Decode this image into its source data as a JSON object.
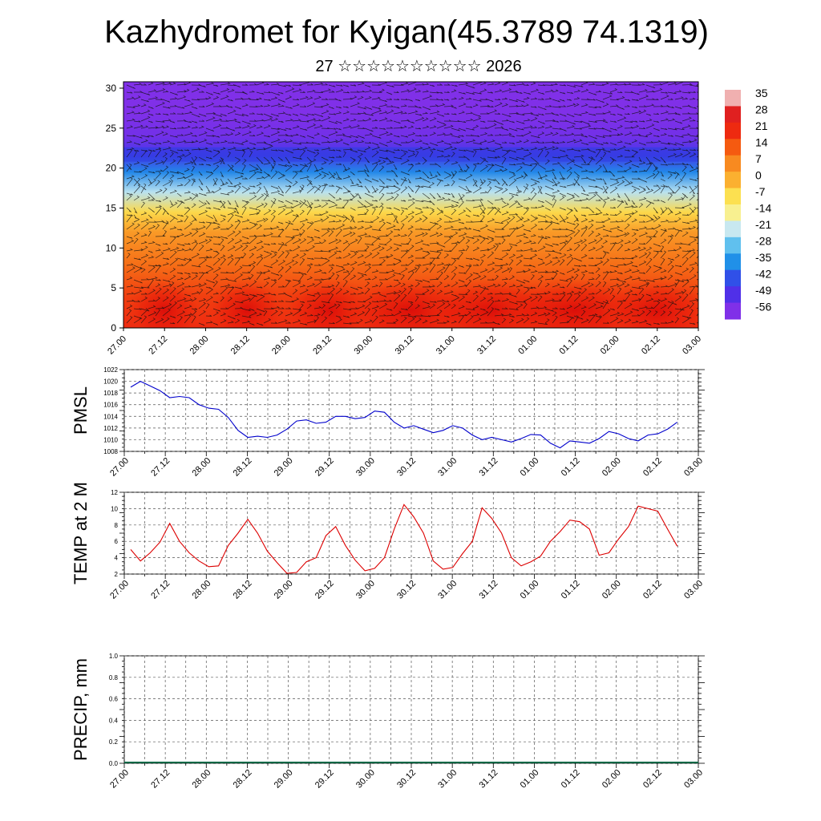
{
  "header": {
    "title": "Kazhydromet for Kyigan(45.3789 74.1319)",
    "subtitle": "27 ☆☆☆☆☆☆☆☆☆☆ 2026"
  },
  "chart_data": [
    {
      "type": "heatmap",
      "title": "",
      "xlabel": "",
      "ylabel": "",
      "x_tick_labels": [
        "27.00",
        "27.12",
        "28.00",
        "28.12",
        "29.00",
        "29.12",
        "30.00",
        "30.12",
        "31.00",
        "31.12",
        "01.00",
        "01.12",
        "02.00",
        "02.12",
        "03.00"
      ],
      "y_ticks": [
        0,
        5,
        10,
        15,
        20,
        25,
        30
      ],
      "ylim": [
        0,
        30.8
      ],
      "overlay": "wind vectors",
      "colorbar": {
        "labels": [
          "35",
          "28",
          "21",
          "14",
          "7",
          "0",
          "-7",
          "-14",
          "-21",
          "-28",
          "-35",
          "-42",
          "-49",
          "-56"
        ],
        "colors": [
          "#f0b0b0",
          "#e02020",
          "#ee2a10",
          "#f55a10",
          "#f88a20",
          "#fbb030",
          "#fce050",
          "#f8f090",
          "#c8e8f0",
          "#60c0ee",
          "#2090e8",
          "#3050e8",
          "#5030e8",
          "#8030e8"
        ]
      },
      "temperature_profile": [
        {
          "height": 0,
          "value": 21
        },
        {
          "height": 4,
          "value": 18
        },
        {
          "height": 8,
          "value": 11
        },
        {
          "height": 12,
          "value": 4
        },
        {
          "height": 14.5,
          "value": -6
        },
        {
          "height": 17,
          "value": -22
        },
        {
          "height": 19.5,
          "value": -36
        },
        {
          "height": 21.6,
          "value": -47
        },
        {
          "height": 24,
          "value": -54
        },
        {
          "height": 27,
          "value": -56
        },
        {
          "height": 30.8,
          "value": -57
        }
      ]
    },
    {
      "type": "line",
      "ylabel": "PMSL",
      "ylim": [
        1008,
        1022
      ],
      "y_ticks": [
        1008,
        1010,
        1012,
        1014,
        1016,
        1018,
        1020,
        1022
      ],
      "x_tick_labels": [
        "27.00",
        "27.12",
        "28.00",
        "28.12",
        "29.00",
        "29.12",
        "30.00",
        "30.12",
        "31.00",
        "31.12",
        "01.00",
        "01.12",
        "02.00",
        "02.12",
        "03.00"
      ],
      "color": "#0000cc",
      "values": [
        1019.0,
        1020.0,
        1019.2,
        1018.4,
        1017.2,
        1017.4,
        1017.2,
        1016.0,
        1015.4,
        1015.2,
        1013.8,
        1011.6,
        1010.4,
        1010.6,
        1010.4,
        1010.8,
        1011.8,
        1013.2,
        1013.4,
        1012.8,
        1013.0,
        1014.0,
        1014.0,
        1013.6,
        1013.8,
        1014.9,
        1014.7,
        1013.0,
        1012.0,
        1012.4,
        1011.8,
        1011.2,
        1011.6,
        1012.4,
        1012.0,
        1010.8,
        1010.0,
        1010.4,
        1010.0,
        1009.6,
        1010.2,
        1010.9,
        1010.8,
        1009.4,
        1008.6,
        1009.8,
        1009.6,
        1009.4,
        1010.2,
        1011.4,
        1011.0,
        1010.2,
        1009.8,
        1010.8,
        1011.0,
        1011.8,
        1013.0
      ]
    },
    {
      "type": "line",
      "ylabel": "TEMP at 2 M",
      "ylim": [
        2,
        12
      ],
      "y_ticks": [
        2,
        4,
        6,
        8,
        10,
        12
      ],
      "x_tick_labels": [
        "27.00",
        "27.12",
        "28.00",
        "28.12",
        "29.00",
        "29.12",
        "30.00",
        "30.12",
        "31.00",
        "31.12",
        "01.00",
        "01.12",
        "02.00",
        "02.12",
        "03.00"
      ],
      "color": "#dd0000",
      "values": [
        5.0,
        3.6,
        4.6,
        5.9,
        8.2,
        6.0,
        4.6,
        3.6,
        2.9,
        3.0,
        5.5,
        7.0,
        8.7,
        7.0,
        4.8,
        3.4,
        2.1,
        2.2,
        3.5,
        4.0,
        6.7,
        7.8,
        5.5,
        3.7,
        2.4,
        2.7,
        4.0,
        7.5,
        10.5,
        9.0,
        7.0,
        3.6,
        2.6,
        2.8,
        4.5,
        6.0,
        10.1,
        8.8,
        7.0,
        4.0,
        3.0,
        3.5,
        4.2,
        6.0,
        7.2,
        8.6,
        8.4,
        7.5,
        4.3,
        4.6,
        6.3,
        7.8,
        10.3,
        10.0,
        9.7,
        7.5,
        5.4
      ]
    },
    {
      "type": "bar",
      "ylabel": "PRECIP, mm",
      "ylim": [
        0,
        1
      ],
      "y_ticks": [
        "0.0",
        "0.2",
        "0.4",
        "0.6",
        "0.8",
        "1.0"
      ],
      "x_tick_labels": [
        "27.00",
        "27.12",
        "28.00",
        "28.12",
        "29.00",
        "29.12",
        "30.00",
        "30.12",
        "31.00",
        "31.12",
        "01.00",
        "01.12",
        "02.00",
        "02.12",
        "03.00"
      ],
      "values": []
    }
  ]
}
